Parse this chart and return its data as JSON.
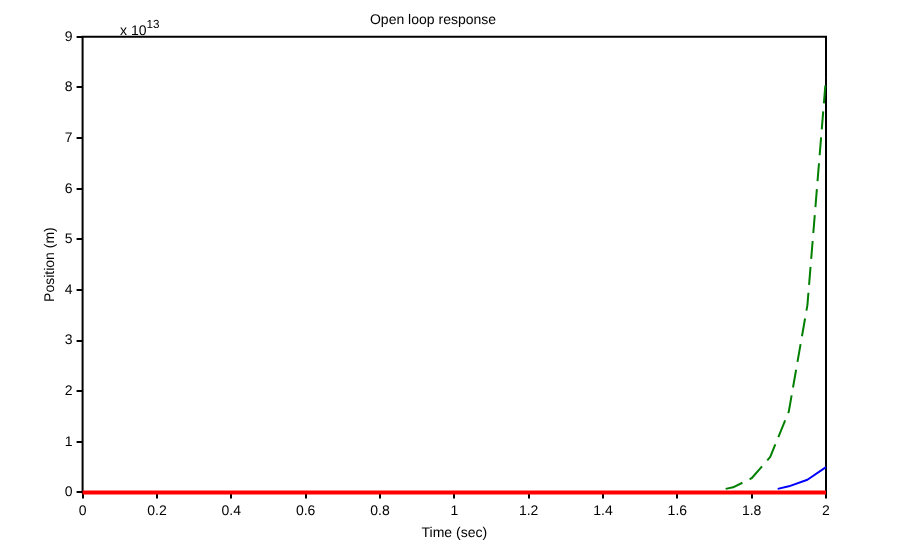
{
  "chart_data": {
    "type": "line",
    "title": "Open loop response",
    "xlabel": "Time (sec)",
    "ylabel": "Position (m)",
    "annotations": [
      "x 10$^{13}$"
    ],
    "xlim": [
      0,
      2
    ],
    "xticks": [
      0,
      0.2,
      0.4,
      0.6,
      0.8,
      1,
      1.2,
      1.4,
      1.6,
      1.8,
      2
    ],
    "ylim": [
      0,
      9
    ],
    "yticks": [
      0,
      1,
      2,
      3,
      4,
      5,
      6,
      7,
      8,
      9
    ],
    "grid": false,
    "legend": false,
    "marker": "none",
    "series": [
      {
        "color": "#0000ff",
        "line_style": "solid",
        "x": [
          1.87,
          1.9,
          1.95,
          2
        ],
        "values": [
          0.07,
          0.12,
          0.25,
          0.5
        ]
      },
      {
        "color": "#007f00",
        "line_style": "dashed",
        "x": [
          1.73,
          1.75,
          1.8,
          1.85,
          1.9,
          1.95,
          2
        ],
        "values": [
          0.07,
          0.1,
          0.28,
          0.7,
          1.6,
          3.7,
          8.2
        ]
      },
      {
        "color": "#ff0000",
        "line_style": "solid",
        "x": [
          0,
          0.5,
          1,
          1.5,
          2
        ],
        "values": [
          0,
          0,
          0,
          0,
          0
        ]
      }
    ]
  }
}
